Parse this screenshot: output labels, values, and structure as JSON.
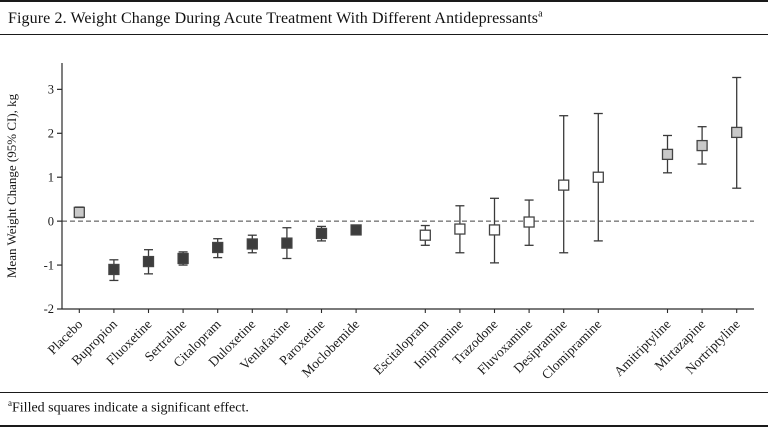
{
  "figure": {
    "title": "Figure 2. Weight Change During Acute Treatment With Different Antidepressants",
    "title_superscript": "a",
    "footnote_marker": "a",
    "footnote": "Filled squares indicate a significant effect."
  },
  "chart_data": {
    "type": "scatter",
    "title": "Weight Change During Acute Treatment With Different Antidepressants",
    "xlabel": "",
    "ylabel": "Mean Weight Change (95% CI), kg",
    "ylim": [
      -2,
      3.6
    ],
    "yticks": [
      -2,
      -1,
      0,
      1,
      2,
      3
    ],
    "reference_line": 0,
    "grid": false,
    "legend_position": "none",
    "marker_note": "filled squares = significant effect; open squares = nonsignificant",
    "colors": {
      "axis_line": "#2a2a2a",
      "error_bar": "#3a3a3a",
      "dark_fill": "#3d3d3d",
      "gray_fill": "#c9c9c9",
      "open_fill": "#ffffff",
      "marker_stroke": "#444444",
      "zero_line": "#444444"
    },
    "points": [
      {
        "label": "Placebo",
        "mean": 0.2,
        "ci_low": 0.08,
        "ci_high": 0.32,
        "fill": "gray",
        "significant": true,
        "group": 1
      },
      {
        "label": "Bupropion",
        "mean": -1.1,
        "ci_low": -1.35,
        "ci_high": -0.88,
        "fill": "dark",
        "significant": true,
        "group": 1
      },
      {
        "label": "Fluoxetine",
        "mean": -0.92,
        "ci_low": -1.2,
        "ci_high": -0.65,
        "fill": "dark",
        "significant": true,
        "group": 1
      },
      {
        "label": "Sertraline",
        "mean": -0.85,
        "ci_low": -1.0,
        "ci_high": -0.7,
        "fill": "dark",
        "significant": true,
        "group": 1
      },
      {
        "label": "Citalopram",
        "mean": -0.6,
        "ci_low": -0.83,
        "ci_high": -0.4,
        "fill": "dark",
        "significant": true,
        "group": 1
      },
      {
        "label": "Duloxetine",
        "mean": -0.52,
        "ci_low": -0.72,
        "ci_high": -0.32,
        "fill": "dark",
        "significant": true,
        "group": 1
      },
      {
        "label": "Venlafaxine",
        "mean": -0.5,
        "ci_low": -0.85,
        "ci_high": -0.15,
        "fill": "dark",
        "significant": true,
        "group": 1
      },
      {
        "label": "Paroxetine",
        "mean": -0.28,
        "ci_low": -0.45,
        "ci_high": -0.12,
        "fill": "dark",
        "significant": true,
        "group": 1
      },
      {
        "label": "Moclobemide",
        "mean": -0.2,
        "ci_low": -0.3,
        "ci_high": -0.1,
        "fill": "dark",
        "significant": true,
        "group": 1
      },
      {
        "label": "Escitalopram",
        "mean": -0.32,
        "ci_low": -0.55,
        "ci_high": -0.1,
        "fill": "open",
        "significant": false,
        "group": 2
      },
      {
        "label": "Imipramine",
        "mean": -0.18,
        "ci_low": -0.72,
        "ci_high": 0.35,
        "fill": "open",
        "significant": false,
        "group": 2
      },
      {
        "label": "Trazodone",
        "mean": -0.2,
        "ci_low": -0.95,
        "ci_high": 0.52,
        "fill": "open",
        "significant": false,
        "group": 2
      },
      {
        "label": "Fluvoxamine",
        "mean": -0.02,
        "ci_low": -0.55,
        "ci_high": 0.48,
        "fill": "open",
        "significant": false,
        "group": 2
      },
      {
        "label": "Desipramine",
        "mean": 0.82,
        "ci_low": -0.72,
        "ci_high": 2.4,
        "fill": "open",
        "significant": false,
        "group": 2
      },
      {
        "label": "Clomipramine",
        "mean": 1.0,
        "ci_low": -0.45,
        "ci_high": 2.45,
        "fill": "open",
        "significant": false,
        "group": 2
      },
      {
        "label": "Amitriptyline",
        "mean": 1.52,
        "ci_low": 1.1,
        "ci_high": 1.95,
        "fill": "gray",
        "significant": true,
        "group": 3
      },
      {
        "label": "Mirtazapine",
        "mean": 1.72,
        "ci_low": 1.3,
        "ci_high": 2.15,
        "fill": "gray",
        "significant": true,
        "group": 3
      },
      {
        "label": "Nortriptyline",
        "mean": 2.02,
        "ci_low": 0.75,
        "ci_high": 3.27,
        "fill": "gray",
        "significant": true,
        "group": 3
      }
    ]
  }
}
